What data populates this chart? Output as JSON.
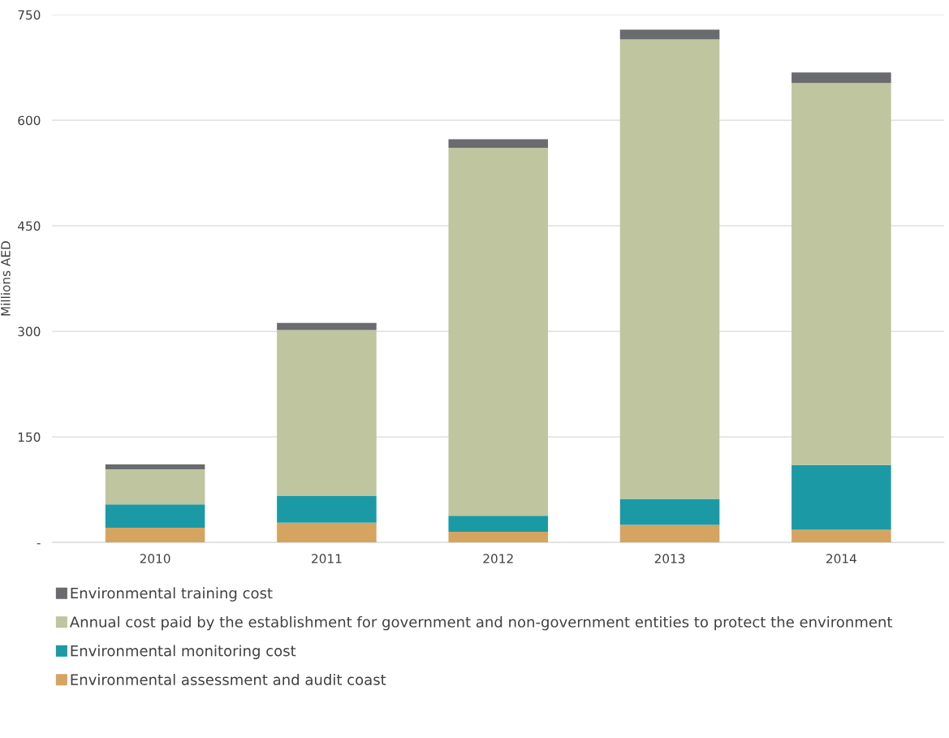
{
  "chart_data": {
    "type": "bar",
    "stacked": true,
    "ylabel": "Millions AED",
    "categories": [
      "2010",
      "2011",
      "2012",
      "2013",
      "2014"
    ],
    "series": [
      {
        "name": "Environmental assessment and audit coast",
        "color": "#d6a461",
        "values": [
          21,
          28,
          15,
          25,
          18
        ]
      },
      {
        "name": "Environmental monitoring cost",
        "color": "#1b9aa6",
        "values": [
          33,
          38,
          23,
          37,
          92
        ]
      },
      {
        "name": "Annual cost paid by the establishment for government and non-government entities to protect the environment",
        "color": "#bfc59e",
        "values": [
          50,
          236,
          523,
          653,
          543
        ]
      },
      {
        "name": "Environmental training cost",
        "color": "#6a6b6f",
        "values": [
          7,
          10,
          12,
          14,
          15
        ]
      }
    ],
    "ylim": [
      0,
      750
    ],
    "yticks": [
      {
        "value": 0,
        "label": "-"
      },
      150,
      300,
      450,
      600,
      750
    ],
    "grid": "y",
    "legend": "bottom"
  }
}
